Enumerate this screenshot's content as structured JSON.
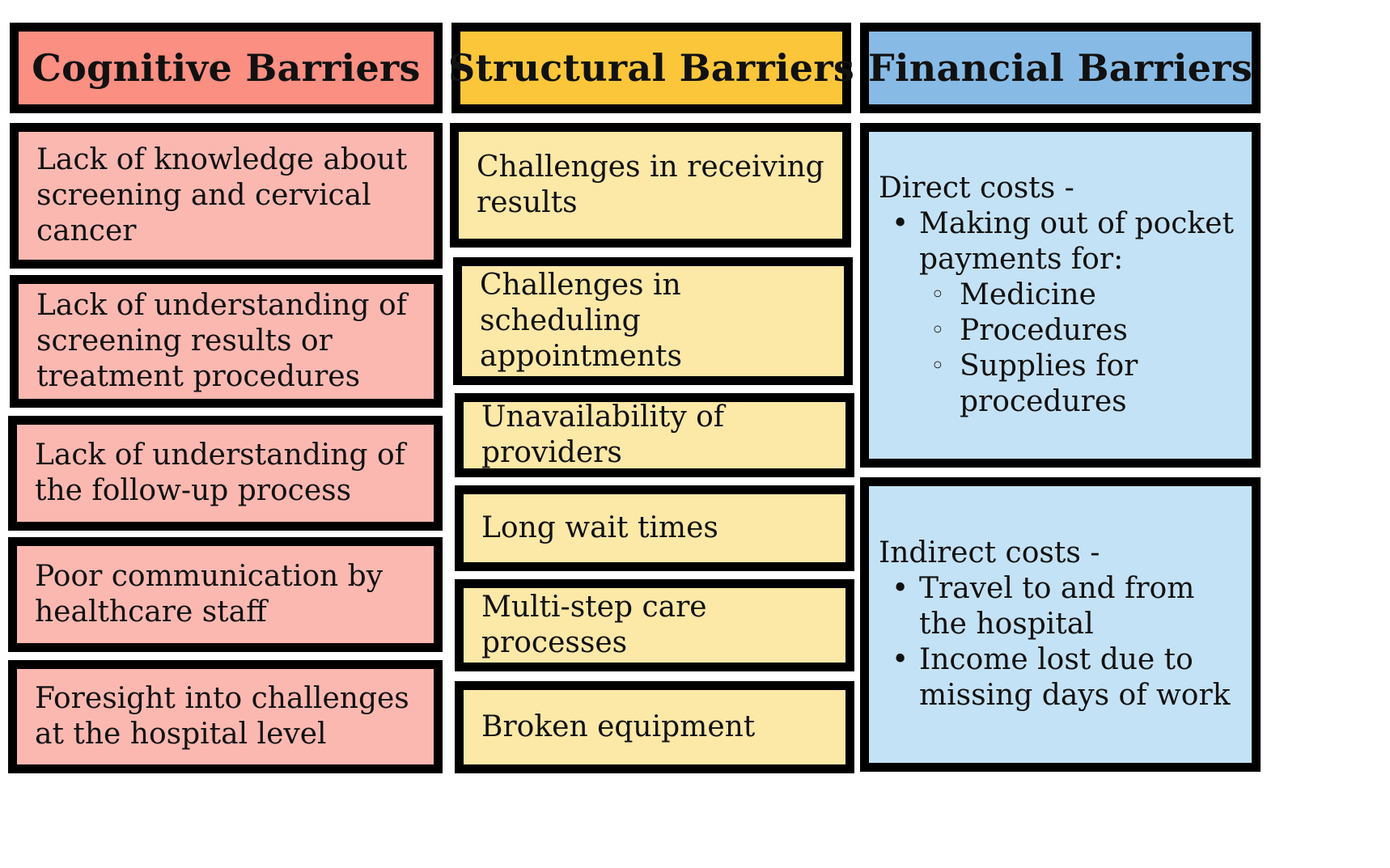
{
  "colors": {
    "cognitive_header": "#fa8f82",
    "cognitive_cell": "#fbb8b1",
    "structural_header": "#fbc63a",
    "structural_cell": "#fce8a7",
    "financial_header": "#87bbe6",
    "financial_cell": "#c4e2f5",
    "border": "#000000"
  },
  "columns": {
    "cognitive": {
      "title": "Cognitive Barriers",
      "items": [
        "Lack of knowledge about screening and cervical cancer",
        "Lack of understanding of screening results or treatment procedures",
        "Lack of understanding of the follow-up process",
        "Poor communication by healthcare staff",
        "Foresight into challenges at the hospital level"
      ]
    },
    "structural": {
      "title": "Structural Barriers",
      "items": [
        "Challenges in receiving results",
        "Challenges in scheduling appointments",
        "Unavailability of providers",
        "Long wait times",
        "Multi-step care processes",
        "Broken equipment"
      ]
    },
    "financial": {
      "title": "Financial Barriers",
      "direct": {
        "label": "Direct costs -",
        "bullet": "Making out of pocket payments for:",
        "sub_items": [
          "Medicine",
          "Procedures",
          "Supplies for procedures"
        ]
      },
      "indirect": {
        "label": "Indirect costs -",
        "bullets": [
          "Travel to and from the hospital",
          "Income lost due to missing days of work"
        ]
      }
    }
  }
}
